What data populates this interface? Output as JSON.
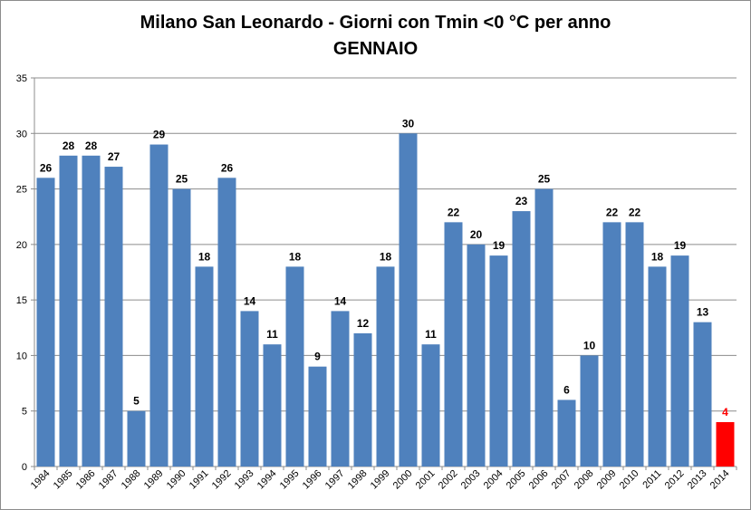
{
  "chart_data": {
    "type": "bar",
    "title": "Milano San Leonardo - Giorni con Tmin <0 °C per anno",
    "subtitle": "GENNAIO",
    "xlabel": "",
    "ylabel": "",
    "categories": [
      "1984",
      "1985",
      "1986",
      "1987",
      "1988",
      "1989",
      "1990",
      "1991",
      "1992",
      "1993",
      "1994",
      "1995",
      "1996",
      "1997",
      "1998",
      "1999",
      "2000",
      "2001",
      "2002",
      "2003",
      "2004",
      "2005",
      "2006",
      "2007",
      "2008",
      "2009",
      "2010",
      "2011",
      "2012",
      "2013",
      "2014"
    ],
    "values": [
      26,
      28,
      28,
      27,
      5,
      29,
      25,
      18,
      26,
      14,
      11,
      18,
      9,
      14,
      12,
      18,
      30,
      11,
      22,
      20,
      19,
      23,
      25,
      6,
      10,
      22,
      22,
      18,
      19,
      13,
      4
    ],
    "ylim": [
      0,
      35
    ],
    "yticks": [
      0,
      5,
      10,
      15,
      20,
      25,
      30,
      35
    ],
    "grid": true,
    "legend": "none",
    "bar_color": "#4f81bd",
    "highlight_color": "#ff0000",
    "highlight_category": "2014",
    "label_color": "#000000"
  }
}
